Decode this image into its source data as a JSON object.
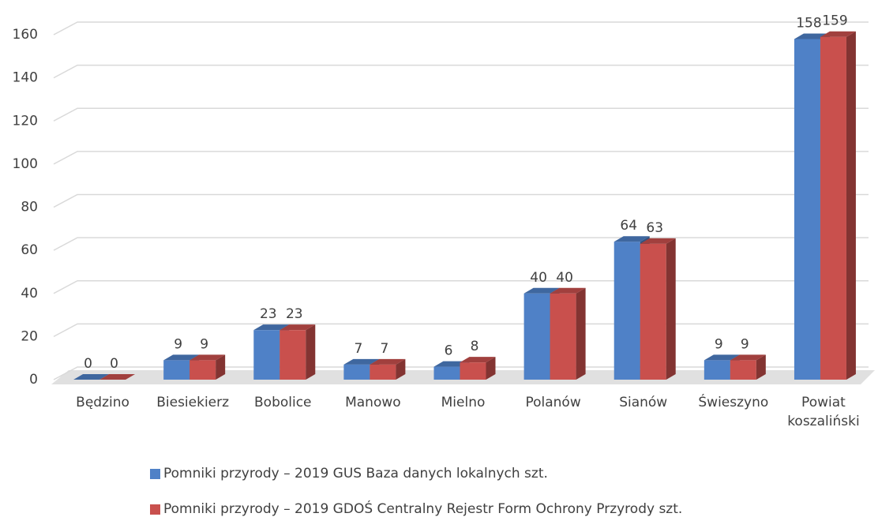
{
  "chart_data": {
    "type": "bar3d",
    "categories": [
      "Będzino",
      "Biesiekierz",
      "Bobolice",
      "Manowo",
      "Mielno",
      "Polanów",
      "Sianów",
      "Świeszyno",
      "Powiat koszaliński"
    ],
    "series": [
      {
        "name": "Pomniki przyrody – 2019 GUS Baza danych lokalnych szt.",
        "color": "#4f81c7",
        "values": [
          0,
          9,
          23,
          7,
          6,
          40,
          64,
          9,
          158
        ]
      },
      {
        "name": "Pomniki przyrody – 2019 GDOŚ Centralny Rejestr Form Ochrony Przyrody szt.",
        "color": "#c9504d",
        "values": [
          0,
          9,
          23,
          7,
          8,
          40,
          63,
          9,
          159
        ]
      }
    ],
    "ylim": [
      0,
      160
    ],
    "yticks": [
      0,
      20,
      40,
      60,
      80,
      100,
      120,
      140,
      160
    ],
    "grid": true,
    "legend": "bottom"
  }
}
